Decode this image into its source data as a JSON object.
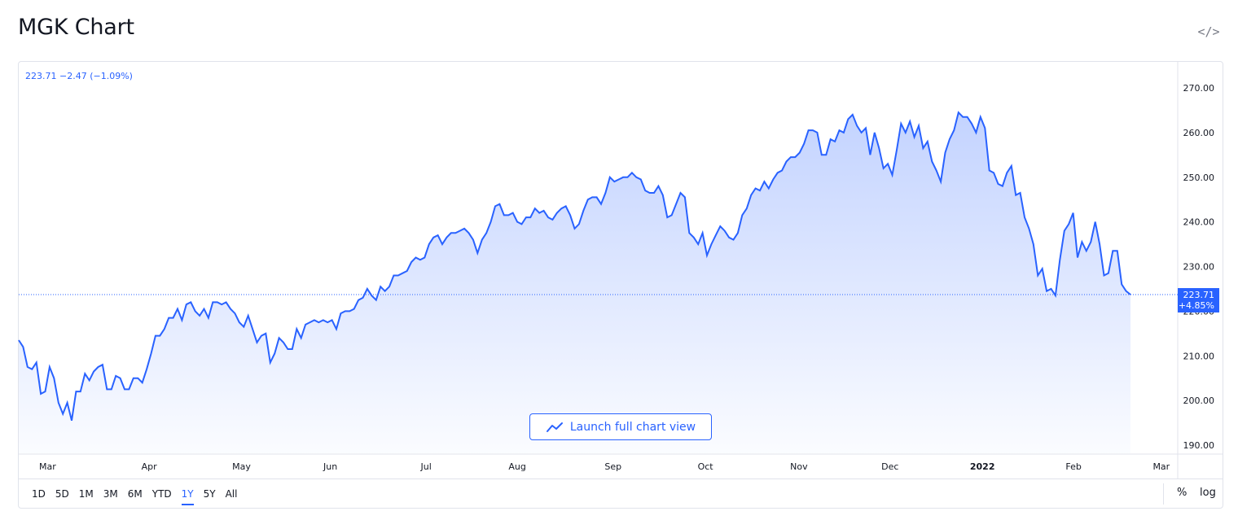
{
  "title": "MGK Chart",
  "embed_icon": "code-icon",
  "legend": {
    "price": "223.71",
    "change": "−2.47",
    "change_pct": "(−1.09%)"
  },
  "last_label": {
    "price": "223.71",
    "change_pct": "+4.85%"
  },
  "launch_button": {
    "label": "Launch full chart view",
    "icon": "trend-line-icon"
  },
  "time_ranges": [
    {
      "label": "1D",
      "active": false
    },
    {
      "label": "5D",
      "active": false
    },
    {
      "label": "1M",
      "active": false
    },
    {
      "label": "3M",
      "active": false
    },
    {
      "label": "6M",
      "active": false
    },
    {
      "label": "YTD",
      "active": false
    },
    {
      "label": "1Y",
      "active": true
    },
    {
      "label": "5Y",
      "active": false
    },
    {
      "label": "All",
      "active": false
    }
  ],
  "scale_options": {
    "percent": "%",
    "log": "log"
  },
  "colors": {
    "accent": "#2962ff",
    "line": "#2962ff",
    "area_top": "#2962ff",
    "grid_text": "#131722"
  },
  "chart_data": {
    "type": "area",
    "yaxis_ticks": [
      "270.00",
      "260.00",
      "250.00",
      "240.00",
      "230.00",
      "220.00",
      "210.00",
      "200.00",
      "190.00"
    ],
    "ylim": [
      188,
      274
    ],
    "xaxis_labels": [
      {
        "label": "Mar",
        "pos": 0.025
      },
      {
        "label": "Apr",
        "pos": 0.113
      },
      {
        "label": "May",
        "pos": 0.193
      },
      {
        "label": "Jun",
        "pos": 0.27
      },
      {
        "label": "Jul",
        "pos": 0.353
      },
      {
        "label": "Aug",
        "pos": 0.432
      },
      {
        "label": "Sep",
        "pos": 0.515
      },
      {
        "label": "Oct",
        "pos": 0.595
      },
      {
        "label": "Nov",
        "pos": 0.676
      },
      {
        "label": "Dec",
        "pos": 0.755
      },
      {
        "label": "2022",
        "pos": 0.835,
        "bold": true
      },
      {
        "label": "Feb",
        "pos": 0.914
      },
      {
        "label": "Mar",
        "pos": 0.99
      }
    ],
    "series": [
      {
        "values": [
          213.5,
          212.0,
          207.5,
          207.0,
          208.5,
          201.5,
          202.0,
          207.5,
          205.0,
          199.5,
          197.0,
          199.5,
          195.5,
          202.0,
          202.0,
          206.0,
          204.5,
          206.5,
          207.5,
          208.0,
          202.5,
          202.5,
          205.5,
          205.0,
          202.5,
          202.5,
          205.0,
          205.0,
          204.0,
          207.0,
          210.5,
          214.5,
          214.5,
          216.0,
          218.5,
          218.5,
          220.5,
          218.0,
          221.5,
          222.0,
          220.0,
          219.0,
          220.5,
          218.5,
          222.0,
          222.0,
          221.5,
          222.0,
          220.5,
          219.5,
          217.5,
          216.5,
          219.0,
          216.0,
          213.0,
          214.5,
          215.0,
          208.5,
          210.5,
          214.0,
          213.0,
          211.5,
          211.5,
          216.0,
          214.0,
          217.0,
          217.5,
          218.0,
          217.5,
          218.0,
          217.5,
          218.0,
          216.0,
          219.5,
          220.0,
          220.0,
          220.5,
          222.5,
          223.0,
          225.0,
          223.5,
          222.5,
          225.5,
          224.5,
          225.5,
          228.0,
          228.0,
          228.5,
          229.0,
          231.0,
          232.0,
          231.5,
          232.0,
          235.0,
          236.5,
          237.0,
          235.0,
          236.5,
          237.5,
          237.5,
          238.0,
          238.5,
          237.5,
          236.0,
          233.0,
          236.0,
          237.5,
          240.0,
          243.5,
          244.0,
          241.5,
          241.5,
          242.0,
          240.0,
          239.5,
          241.0,
          241.0,
          243.0,
          242.0,
          242.5,
          241.0,
          240.5,
          242.0,
          243.0,
          243.5,
          241.5,
          238.5,
          239.5,
          242.5,
          245.0,
          245.5,
          245.5,
          244.0,
          246.5,
          250.0,
          249.0,
          249.5,
          250.0,
          250.0,
          251.0,
          250.0,
          249.5,
          247.0,
          246.5,
          246.5,
          248.0,
          246.0,
          241.0,
          241.5,
          244.0,
          246.5,
          245.5,
          237.5,
          236.5,
          235.0,
          237.5,
          232.5,
          235.0,
          237.0,
          239.0,
          238.0,
          236.5,
          236.0,
          237.5,
          241.5,
          243.0,
          246.0,
          247.5,
          247.0,
          249.0,
          247.5,
          249.5,
          251.0,
          251.5,
          253.5,
          254.5,
          254.5,
          255.5,
          257.5,
          260.5,
          260.5,
          260.0,
          255.0,
          255.0,
          258.5,
          258.0,
          260.5,
          260.0,
          263.0,
          264.0,
          261.5,
          260.0,
          261.0,
          255.0,
          260.0,
          256.5,
          252.0,
          253.0,
          250.5,
          256.0,
          262.0,
          260.0,
          262.5,
          259.0,
          261.5,
          256.5,
          258.0,
          253.5,
          251.5,
          249.0,
          255.5,
          258.5,
          260.5,
          264.5,
          263.5,
          263.5,
          262.0,
          260.0,
          263.5,
          261.0,
          251.5,
          251.0,
          248.5,
          248.0,
          251.0,
          252.5,
          246.0,
          246.5,
          241.0,
          238.5,
          235.0,
          228.0,
          229.5,
          224.5,
          225.0,
          223.5,
          231.5,
          238.0,
          239.5,
          242.0,
          232.0,
          235.5,
          233.5,
          235.5,
          240.0,
          235.0,
          228.0,
          228.5,
          233.5,
          233.5,
          226.0,
          224.5,
          223.71
        ]
      }
    ],
    "last_value": 223.71
  }
}
